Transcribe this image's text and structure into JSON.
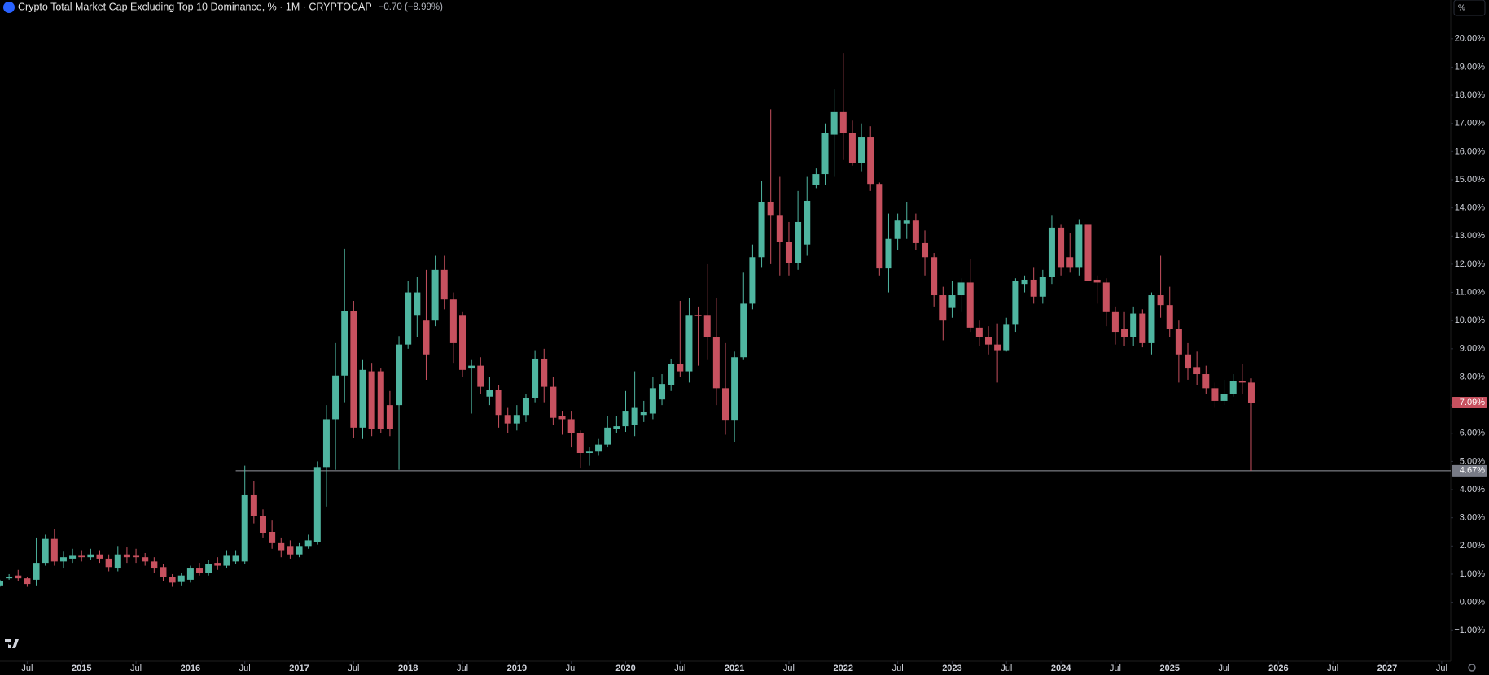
{
  "chart_data": {
    "type": "candlestick",
    "title": "Crypto Total Market Cap Excluding Top 10 Dominance, % · 1M · CRYPTOCAP",
    "change": "−0.70 (−8.99%)",
    "scale_button": "%",
    "up_color": "#4fb5a0",
    "down_color": "#c7515f",
    "x": [
      "2014-04",
      "2014-05",
      "2014-06",
      "2014-07",
      "2014-08",
      "2014-09",
      "2014-10",
      "2014-11",
      "2014-12",
      "2015-01",
      "2015-02",
      "2015-03",
      "2015-04",
      "2015-05",
      "2015-06",
      "2015-07",
      "2015-08",
      "2015-09",
      "2015-10",
      "2015-11",
      "2015-12",
      "2016-01",
      "2016-02",
      "2016-03",
      "2016-04",
      "2016-05",
      "2016-06",
      "2016-07",
      "2016-08",
      "2016-09",
      "2016-10",
      "2016-11",
      "2016-12",
      "2017-01",
      "2017-02",
      "2017-03",
      "2017-04",
      "2017-05",
      "2017-06",
      "2017-07",
      "2017-08",
      "2017-09",
      "2017-10",
      "2017-11",
      "2017-12",
      "2018-01",
      "2018-02",
      "2018-03",
      "2018-04",
      "2018-05",
      "2018-06",
      "2018-07",
      "2018-08",
      "2018-09",
      "2018-10",
      "2018-11",
      "2018-12",
      "2019-01",
      "2019-02",
      "2019-03",
      "2019-04",
      "2019-05",
      "2019-06",
      "2019-07",
      "2019-08",
      "2019-09",
      "2019-10",
      "2019-11",
      "2019-12",
      "2020-01",
      "2020-02",
      "2020-03",
      "2020-04",
      "2020-05",
      "2020-06",
      "2020-07",
      "2020-08",
      "2020-09",
      "2020-10",
      "2020-11",
      "2020-12",
      "2021-01",
      "2021-02",
      "2021-03",
      "2021-04",
      "2021-05",
      "2021-06",
      "2021-07",
      "2021-08",
      "2021-09",
      "2021-10",
      "2021-11",
      "2021-12",
      "2022-01",
      "2022-02",
      "2022-03",
      "2022-04",
      "2022-05",
      "2022-06",
      "2022-07",
      "2022-08",
      "2022-09",
      "2022-10",
      "2022-11",
      "2022-12",
      "2023-01",
      "2023-02",
      "2023-03",
      "2023-04",
      "2023-05",
      "2023-06",
      "2023-07",
      "2023-08",
      "2023-09",
      "2023-10",
      "2023-11",
      "2023-12",
      "2024-01",
      "2024-02",
      "2024-03",
      "2024-04",
      "2024-05",
      "2024-06",
      "2024-07",
      "2024-08",
      "2024-09",
      "2024-10",
      "2024-11",
      "2024-12",
      "2025-01",
      "2025-02",
      "2025-03",
      "2025-04",
      "2025-05",
      "2025-06",
      "2025-07",
      "2025-08",
      "2025-09",
      "2025-10"
    ],
    "open": [
      0.6,
      0.85,
      0.95,
      0.85,
      0.8,
      1.4,
      2.25,
      1.45,
      1.55,
      1.65,
      1.6,
      1.7,
      1.55,
      1.2,
      1.7,
      1.65,
      1.6,
      1.45,
      1.25,
      0.9,
      0.72,
      0.8,
      1.2,
      1.05,
      1.4,
      1.3,
      1.45,
      1.45,
      3.8,
      3.05,
      2.5,
      2.1,
      2.0,
      1.7,
      2.0,
      2.15,
      4.8,
      6.5,
      8.05,
      10.35,
      6.2,
      8.2,
      8.2,
      7.0,
      7.0,
      9.15,
      10.2,
      10.0,
      10.0,
      11.8,
      10.75,
      10.2,
      8.3,
      8.4,
      7.3,
      7.55,
      6.65,
      6.35,
      6.65,
      7.25,
      8.65,
      7.65,
      6.6,
      6.5,
      6.0,
      5.3,
      5.35,
      5.6,
      6.15,
      6.25,
      6.3,
      6.65,
      6.7,
      7.2,
      7.7,
      8.45,
      8.2,
      10.2,
      10.2,
      9.4,
      7.6,
      6.45,
      8.7,
      10.6,
      12.25,
      14.2,
      13.75,
      12.8,
      12.05,
      12.7,
      14.8,
      15.2,
      16.6,
      17.4,
      16.65,
      15.6,
      16.5,
      14.85,
      11.85,
      12.9,
      13.45,
      13.55,
      12.75,
      12.25,
      10.9,
      10.45,
      10.9,
      11.35,
      9.75,
      9.4,
      9.15,
      8.95,
      9.85,
      11.3,
      11.45,
      10.85,
      11.55,
      13.3,
      12.25,
      11.9,
      13.4,
      11.45,
      11.35,
      10.3,
      9.7,
      9.4,
      10.25,
      9.2,
      10.9,
      10.55,
      9.7,
      8.8,
      8.35,
      8.1,
      7.6,
      7.15,
      7.4,
      7.85,
      7.8
    ],
    "high": [
      0.8,
      1.0,
      1.15,
      0.9,
      2.3,
      2.4,
      2.6,
      1.8,
      1.9,
      1.85,
      1.9,
      1.85,
      1.7,
      2.0,
      1.95,
      1.9,
      1.75,
      1.6,
      1.35,
      1.0,
      1.05,
      1.3,
      1.4,
      1.5,
      1.6,
      1.85,
      1.85,
      4.85,
      4.3,
      3.3,
      2.9,
      2.3,
      2.2,
      2.1,
      2.4,
      5.0,
      7.0,
      9.2,
      12.55,
      10.7,
      8.6,
      8.5,
      8.3,
      7.5,
      9.45,
      11.4,
      11.55,
      11.8,
      12.3,
      12.3,
      11.0,
      10.3,
      8.6,
      8.7,
      8.0,
      7.7,
      6.9,
      7.0,
      7.4,
      8.95,
      9.0,
      8.0,
      6.8,
      6.8,
      6.1,
      5.5,
      5.8,
      6.6,
      6.6,
      7.5,
      8.2,
      7.15,
      8.0,
      8.1,
      8.65,
      10.7,
      10.8,
      10.5,
      12.0,
      10.8,
      9.2,
      8.9,
      11.7,
      12.7,
      14.95,
      17.5,
      15.1,
      13.5,
      14.6,
      15.1,
      15.4,
      17.0,
      18.2,
      19.5,
      17.1,
      17.0,
      16.9,
      14.9,
      13.8,
      13.8,
      14.2,
      13.8,
      13.2,
      12.4,
      11.2,
      11.4,
      11.5,
      12.2,
      10.0,
      9.8,
      9.9,
      10.1,
      11.5,
      11.6,
      11.9,
      11.8,
      13.75,
      13.4,
      13.1,
      13.6,
      13.6,
      11.6,
      11.5,
      10.5,
      10.3,
      10.5,
      10.4,
      11.0,
      12.3,
      11.2,
      10.0,
      9.2,
      8.9,
      8.4,
      7.8,
      7.9,
      8.1,
      8.45,
      7.95
    ],
    "low": [
      0.55,
      0.8,
      0.75,
      0.55,
      0.6,
      1.3,
      1.3,
      1.2,
      1.4,
      1.45,
      1.5,
      1.4,
      1.1,
      1.1,
      1.4,
      1.4,
      1.3,
      1.05,
      0.75,
      0.55,
      0.6,
      0.7,
      0.95,
      0.95,
      1.15,
      1.2,
      1.35,
      1.35,
      2.8,
      2.3,
      1.9,
      1.6,
      1.55,
      1.6,
      1.9,
      2.05,
      3.4,
      4.7,
      7.1,
      5.85,
      5.8,
      5.9,
      6.0,
      5.9,
      4.7,
      9.0,
      9.4,
      7.9,
      9.8,
      10.4,
      8.5,
      8.0,
      6.7,
      7.4,
      7.0,
      6.2,
      6.0,
      6.1,
      6.4,
      7.1,
      7.1,
      6.3,
      5.95,
      5.5,
      4.75,
      4.85,
      5.2,
      5.5,
      6.0,
      6.05,
      5.9,
      6.4,
      6.5,
      7.0,
      7.5,
      8.0,
      7.8,
      8.4,
      8.6,
      7.0,
      5.95,
      5.7,
      8.6,
      10.4,
      11.9,
      12.0,
      11.6,
      11.6,
      11.8,
      12.3,
      14.7,
      14.8,
      15.1,
      15.7,
      15.5,
      15.3,
      14.6,
      11.6,
      11.0,
      12.5,
      12.9,
      12.5,
      11.6,
      10.5,
      9.3,
      10.1,
      10.3,
      9.6,
      9.1,
      8.8,
      7.8,
      8.9,
      9.6,
      11.0,
      10.6,
      10.6,
      11.3,
      11.6,
      11.7,
      11.6,
      11.1,
      10.6,
      9.8,
      9.15,
      9.1,
      9.1,
      9.05,
      8.8,
      10.1,
      9.4,
      7.8,
      7.9,
      7.7,
      7.4,
      6.9,
      7.0,
      7.3,
      7.4,
      4.67
    ],
    "close": [
      0.75,
      0.9,
      0.85,
      0.65,
      1.4,
      2.25,
      1.45,
      1.6,
      1.65,
      1.6,
      1.7,
      1.55,
      1.25,
      1.7,
      1.6,
      1.6,
      1.45,
      1.2,
      0.9,
      0.7,
      0.95,
      1.2,
      1.05,
      1.35,
      1.3,
      1.65,
      1.65,
      3.8,
      3.05,
      2.45,
      2.1,
      1.85,
      1.7,
      2.0,
      2.2,
      4.8,
      6.5,
      8.05,
      10.35,
      6.2,
      8.25,
      6.15,
      6.15,
      6.15,
      9.15,
      11.0,
      11.0,
      8.8,
      11.8,
      10.75,
      9.2,
      8.25,
      8.4,
      7.65,
      7.55,
      6.65,
      6.35,
      6.65,
      7.25,
      8.65,
      7.65,
      6.55,
      6.5,
      6.0,
      5.3,
      5.35,
      5.6,
      6.2,
      6.25,
      6.8,
      6.9,
      6.75,
      7.6,
      7.75,
      8.45,
      8.2,
      10.2,
      10.15,
      9.4,
      7.6,
      6.45,
      8.7,
      10.6,
      12.25,
      14.2,
      13.75,
      12.8,
      12.05,
      13.5,
      14.25,
      15.2,
      16.65,
      17.4,
      16.65,
      15.6,
      16.5,
      14.85,
      11.85,
      12.9,
      13.55,
      13.55,
      12.75,
      12.25,
      10.9,
      10.0,
      10.9,
      11.35,
      9.75,
      9.4,
      9.15,
      8.95,
      9.85,
      11.4,
      11.45,
      10.85,
      11.55,
      13.3,
      11.9,
      11.9,
      13.4,
      11.4,
      11.35,
      10.3,
      9.6,
      9.4,
      10.25,
      9.2,
      10.9,
      10.55,
      9.7,
      8.8,
      8.3,
      8.1,
      7.6,
      7.15,
      7.4,
      7.85,
      7.8,
      7.09
    ],
    "last_label": "7.09%",
    "hline": {
      "value": 4.67,
      "label": "4.67%",
      "start": "2016-06"
    },
    "xlim": [
      "2014-04",
      "2027-08"
    ],
    "xticks": [
      {
        "value": "2014-07",
        "label": "Jul"
      },
      {
        "value": "2015-01",
        "label": "2015"
      },
      {
        "value": "2015-07",
        "label": "Jul"
      },
      {
        "value": "2016-01",
        "label": "2016"
      },
      {
        "value": "2016-07",
        "label": "Jul"
      },
      {
        "value": "2017-01",
        "label": "2017"
      },
      {
        "value": "2017-07",
        "label": "Jul"
      },
      {
        "value": "2018-01",
        "label": "2018"
      },
      {
        "value": "2018-07",
        "label": "Jul"
      },
      {
        "value": "2019-01",
        "label": "2019"
      },
      {
        "value": "2019-07",
        "label": "Jul"
      },
      {
        "value": "2020-01",
        "label": "2020"
      },
      {
        "value": "2020-07",
        "label": "Jul"
      },
      {
        "value": "2021-01",
        "label": "2021"
      },
      {
        "value": "2021-07",
        "label": "Jul"
      },
      {
        "value": "2022-01",
        "label": "2022"
      },
      {
        "value": "2022-07",
        "label": "Jul"
      },
      {
        "value": "2023-01",
        "label": "2023"
      },
      {
        "value": "2023-07",
        "label": "Jul"
      },
      {
        "value": "2024-01",
        "label": "2024"
      },
      {
        "value": "2024-07",
        "label": "Jul"
      },
      {
        "value": "2025-01",
        "label": "2025"
      },
      {
        "value": "2025-07",
        "label": "Jul"
      },
      {
        "value": "2026-01",
        "label": "2026"
      },
      {
        "value": "2026-07",
        "label": "Jul"
      },
      {
        "value": "2027-01",
        "label": "2027"
      },
      {
        "value": "2027-07",
        "label": "Jul"
      }
    ],
    "ylim": [
      -2.09,
      21.38
    ],
    "yticks": [
      {
        "value": -1,
        "label": "−1.00%"
      },
      {
        "value": 0,
        "label": "0.00%"
      },
      {
        "value": 1,
        "label": "1.00%"
      },
      {
        "value": 2,
        "label": "2.00%"
      },
      {
        "value": 3,
        "label": "3.00%"
      },
      {
        "value": 4,
        "label": "4.00%"
      },
      {
        "value": 5,
        "label": "5.00%"
      },
      {
        "value": 6,
        "label": "6.00%"
      },
      {
        "value": 7,
        "label": "7.00%"
      },
      {
        "value": 8,
        "label": "8.00%"
      },
      {
        "value": 9,
        "label": "9.00%"
      },
      {
        "value": 10,
        "label": "10.00%"
      },
      {
        "value": 11,
        "label": "11.00%"
      },
      {
        "value": 12,
        "label": "12.00%"
      },
      {
        "value": 13,
        "label": "13.00%"
      },
      {
        "value": 14,
        "label": "14.00%"
      },
      {
        "value": 15,
        "label": "15.00%"
      },
      {
        "value": 16,
        "label": "16.00%"
      },
      {
        "value": 17,
        "label": "17.00%"
      },
      {
        "value": 18,
        "label": "18.00%"
      },
      {
        "value": 19,
        "label": "19.00%"
      },
      {
        "value": 20,
        "label": "20.00%"
      }
    ]
  }
}
